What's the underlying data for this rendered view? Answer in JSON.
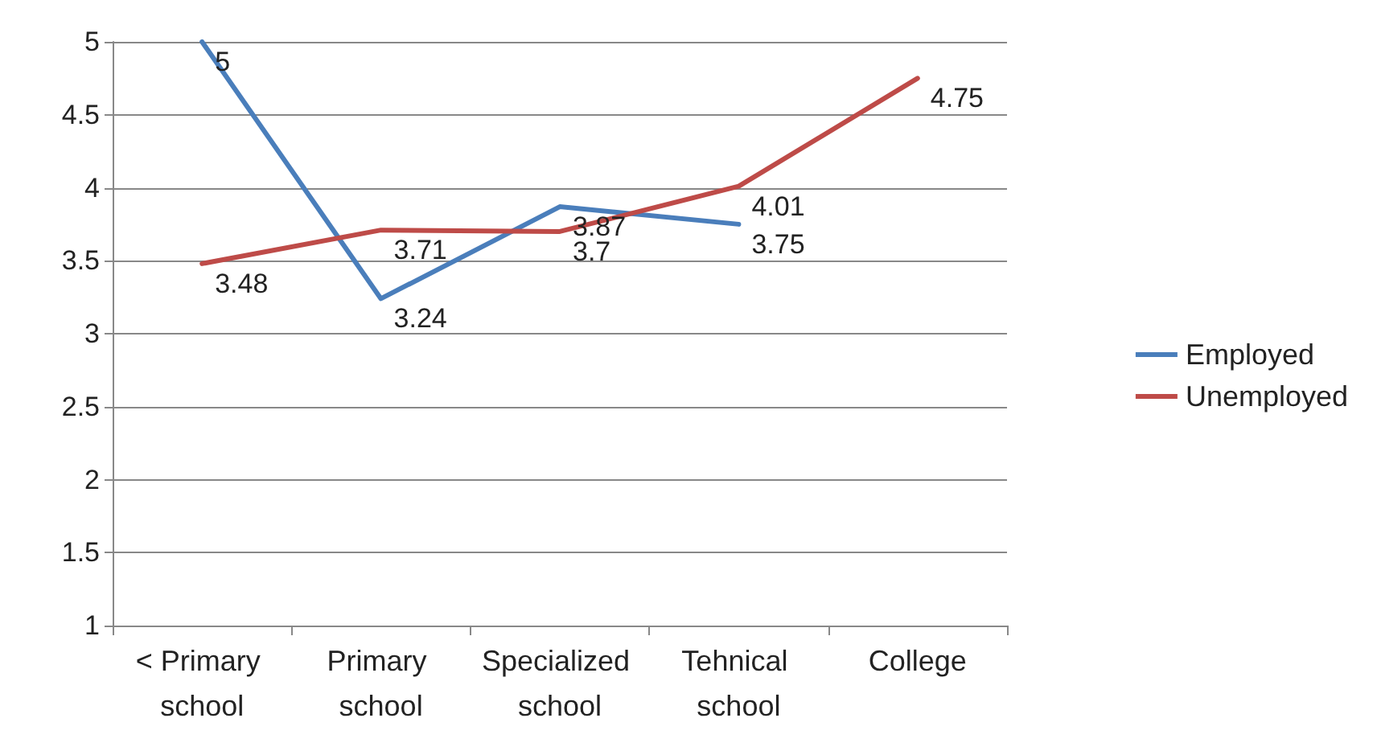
{
  "chart_data": {
    "type": "line",
    "categories": [
      "< Primary school",
      "Primary school",
      "Specialized school",
      "Tehnical school",
      "College"
    ],
    "series": [
      {
        "name": "Employed",
        "color": "#4a7ebb",
        "values": [
          5,
          3.24,
          3.87,
          3.75,
          null
        ]
      },
      {
        "name": "Unemployed",
        "color": "#be4b48",
        "values": [
          3.48,
          3.71,
          3.7,
          4.01,
          4.75
        ]
      }
    ],
    "ylim": [
      1,
      5
    ],
    "yticks": [
      1,
      1.5,
      2,
      2.5,
      3,
      3.5,
      4,
      4.5,
      5
    ],
    "grid": "y",
    "legend": "right",
    "data_labels": true,
    "marker": "none",
    "line_style": "solid"
  }
}
